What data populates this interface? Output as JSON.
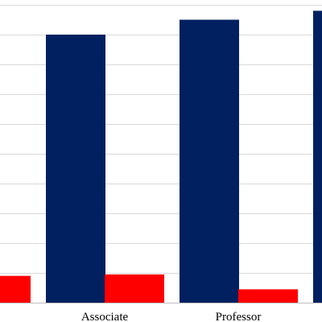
{
  "chart_data": {
    "type": "bar",
    "categories": [
      "",
      "Associate",
      "Professor",
      ""
    ],
    "series": [
      {
        "color": "#002060",
        "values": [
          null,
          90,
          95,
          98
        ]
      },
      {
        "color": "#ff0000",
        "values": [
          9,
          9.5,
          4.5,
          null
        ]
      }
    ],
    "ylim": [
      0,
      100
    ],
    "grid": true
  }
}
